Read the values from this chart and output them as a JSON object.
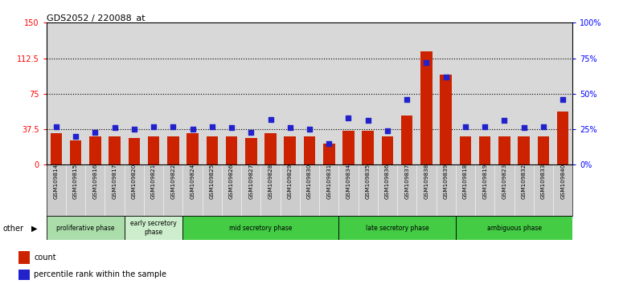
{
  "title": "GDS2052 / 220088_at",
  "samples": [
    "GSM109814",
    "GSM109815",
    "GSM109816",
    "GSM109817",
    "GSM109820",
    "GSM109821",
    "GSM109822",
    "GSM109824",
    "GSM109825",
    "GSM109826",
    "GSM109827",
    "GSM109828",
    "GSM109829",
    "GSM109830",
    "GSM109831",
    "GSM109834",
    "GSM109835",
    "GSM109836",
    "GSM109837",
    "GSM109838",
    "GSM109839",
    "GSM109818",
    "GSM109819",
    "GSM109823",
    "GSM109832",
    "GSM109833",
    "GSM109840"
  ],
  "counts": [
    33,
    26,
    30,
    30,
    28,
    30,
    30,
    33,
    30,
    30,
    28,
    33,
    30,
    30,
    22,
    36,
    36,
    30,
    52,
    120,
    95,
    30,
    30,
    30,
    30,
    30,
    56
  ],
  "percentiles": [
    27,
    20,
    23,
    26,
    25,
    27,
    27,
    25,
    27,
    26,
    23,
    32,
    26,
    25,
    15,
    33,
    31,
    24,
    46,
    72,
    62,
    27,
    27,
    31,
    26,
    27,
    46
  ],
  "bar_color": "#cc2200",
  "dot_color": "#2222cc",
  "ylim_left": [
    0,
    150
  ],
  "ylim_right": [
    0,
    100
  ],
  "yticks_left": [
    0,
    37.5,
    75,
    112.5,
    150
  ],
  "ytick_labels_left": [
    "0",
    "37.5",
    "75",
    "112.5",
    "150"
  ],
  "yticks_right": [
    0,
    25,
    50,
    75,
    100
  ],
  "ytick_labels_right": [
    "0%",
    "25%",
    "50%",
    "75%",
    "100%"
  ],
  "hlines": [
    37.5,
    75,
    112.5
  ],
  "phases": [
    {
      "label": "proliferative phase",
      "start": 0,
      "end": 4,
      "color": "#aaddaa"
    },
    {
      "label": "early secretory\nphase",
      "start": 4,
      "end": 7,
      "color": "#cceecc"
    },
    {
      "label": "mid secretory phase",
      "start": 7,
      "end": 15,
      "color": "#44cc44"
    },
    {
      "label": "late secretory phase",
      "start": 15,
      "end": 21,
      "color": "#44cc44"
    },
    {
      "label": "ambiguous phase",
      "start": 21,
      "end": 27,
      "color": "#44cc44"
    }
  ],
  "other_label": "other",
  "legend_count_label": "count",
  "legend_pct_label": "percentile rank within the sample",
  "plot_bg": "#d8d8d8",
  "label_bg": "#cccccc"
}
